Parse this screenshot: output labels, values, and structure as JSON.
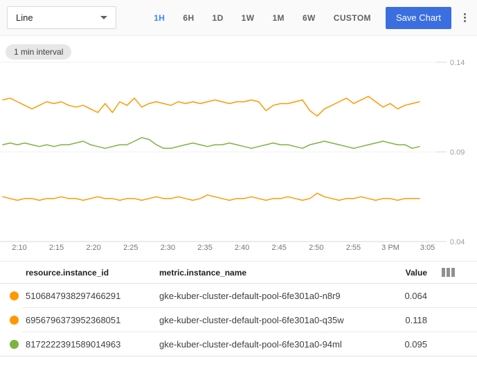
{
  "toolbar": {
    "chart_type": {
      "value": "Line"
    },
    "ranges": [
      {
        "label": "1H",
        "active": true
      },
      {
        "label": "6H",
        "active": false
      },
      {
        "label": "1D",
        "active": false
      },
      {
        "label": "1W",
        "active": false
      },
      {
        "label": "1M",
        "active": false
      },
      {
        "label": "6W",
        "active": false
      },
      {
        "label": "CUSTOM",
        "active": false
      }
    ],
    "save_label": "Save Chart",
    "more_menu_icon": "kebab-menu-icon"
  },
  "interval_chip": "1 min interval",
  "chart_data": {
    "type": "line",
    "title": "",
    "interval": "1 min",
    "time_window": "1H",
    "grid": true,
    "legend_position": "table-below",
    "ylim": [
      0.04,
      0.14
    ],
    "y_ticks": [
      {
        "label": "0.14",
        "value": 0.14
      },
      {
        "label": "0.09",
        "value": 0.09
      },
      {
        "label": "0.04",
        "value": 0.04
      }
    ],
    "x_tick_labels": [
      "2:10",
      "2:15",
      "2:20",
      "2:25",
      "2:30",
      "2:35",
      "2:40",
      "2:45",
      "2:50",
      "2:55",
      "3 PM",
      "3:05"
    ],
    "series": [
      {
        "name": "gke-kuber-cluster-default-pool-6fe301a0-q35w",
        "color": "#ff9800",
        "mean": 0.118,
        "values": [
          0.119,
          0.12,
          0.118,
          0.116,
          0.114,
          0.116,
          0.118,
          0.117,
          0.118,
          0.116,
          0.115,
          0.116,
          0.114,
          0.112,
          0.117,
          0.112,
          0.118,
          0.116,
          0.12,
          0.115,
          0.117,
          0.118,
          0.117,
          0.116,
          0.118,
          0.117,
          0.118,
          0.117,
          0.118,
          0.119,
          0.118,
          0.117,
          0.118,
          0.118,
          0.119,
          0.118,
          0.113,
          0.116,
          0.117,
          0.117,
          0.118,
          0.119,
          0.113,
          0.11,
          0.114,
          0.116,
          0.118,
          0.12,
          0.117,
          0.119,
          0.121,
          0.118,
          0.115,
          0.117,
          0.114,
          0.116,
          0.117,
          0.118
        ]
      },
      {
        "name": "gke-kuber-cluster-default-pool-6fe301a0-94ml",
        "color": "#7cb342",
        "mean": 0.095,
        "values": [
          0.094,
          0.095,
          0.094,
          0.095,
          0.094,
          0.093,
          0.094,
          0.093,
          0.094,
          0.094,
          0.095,
          0.096,
          0.094,
          0.093,
          0.092,
          0.093,
          0.094,
          0.094,
          0.096,
          0.098,
          0.097,
          0.094,
          0.092,
          0.092,
          0.093,
          0.094,
          0.095,
          0.094,
          0.093,
          0.094,
          0.094,
          0.095,
          0.094,
          0.093,
          0.092,
          0.093,
          0.094,
          0.095,
          0.094,
          0.094,
          0.093,
          0.092,
          0.094,
          0.095,
          0.096,
          0.095,
          0.094,
          0.093,
          0.092,
          0.093,
          0.094,
          0.095,
          0.096,
          0.095,
          0.094,
          0.094,
          0.092,
          0.093
        ]
      },
      {
        "name": "gke-kuber-cluster-default-pool-6fe301a0-n8r9",
        "color": "#ff9800",
        "mean": 0.064,
        "values": [
          0.065,
          0.064,
          0.063,
          0.064,
          0.064,
          0.063,
          0.064,
          0.064,
          0.065,
          0.064,
          0.064,
          0.063,
          0.064,
          0.065,
          0.064,
          0.064,
          0.063,
          0.064,
          0.064,
          0.063,
          0.064,
          0.065,
          0.064,
          0.064,
          0.065,
          0.064,
          0.063,
          0.064,
          0.066,
          0.065,
          0.064,
          0.063,
          0.064,
          0.064,
          0.065,
          0.064,
          0.063,
          0.064,
          0.064,
          0.065,
          0.064,
          0.063,
          0.064,
          0.067,
          0.065,
          0.064,
          0.063,
          0.064,
          0.064,
          0.065,
          0.064,
          0.063,
          0.064,
          0.064,
          0.063,
          0.064,
          0.064,
          0.064
        ]
      }
    ]
  },
  "legend_table": {
    "columns": [
      "resource.instance_id",
      "metric.instance_name",
      "Value"
    ],
    "column_picker_icon": "view-column-icon",
    "rows": [
      {
        "color": "#ff9800",
        "instance_id": "5106847938297466291",
        "instance_name": "gke-kuber-cluster-default-pool-6fe301a0-n8r9",
        "value": "0.064"
      },
      {
        "color": "#ff9800",
        "instance_id": "6956796373952368051",
        "instance_name": "gke-kuber-cluster-default-pool-6fe301a0-q35w",
        "value": "0.118"
      },
      {
        "color": "#7cb342",
        "instance_id": "8172222391589014963",
        "instance_name": "gke-kuber-cluster-default-pool-6fe301a0-94ml",
        "value": "0.095"
      }
    ]
  },
  "colors": {
    "accent_blue": "#4285f4",
    "save_button_blue": "#3b6fe0",
    "line_orange": "#ff9800",
    "line_green": "#7cb342",
    "toolbar_bg": "#fafafa"
  }
}
